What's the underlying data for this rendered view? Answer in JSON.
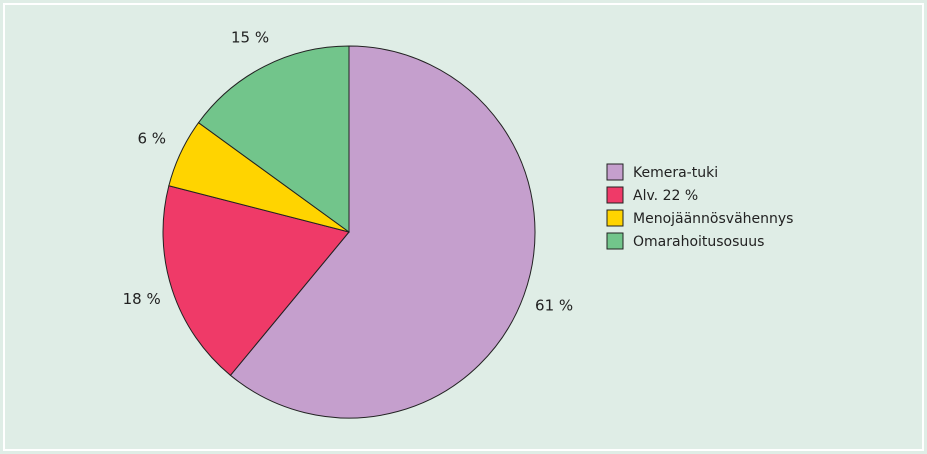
{
  "chart_data": {
    "type": "pie",
    "categories": [
      "Kemera-tuki",
      "Alv. 22 %",
      "Menojäännösvähennys",
      "Omarahoitusosuus"
    ],
    "values": [
      61,
      18,
      6,
      15
    ],
    "value_labels": [
      "61 %",
      "18 %",
      "6 %",
      "15 %"
    ],
    "colors": [
      "#c59fcd",
      "#ef3a68",
      "#ffd400",
      "#72c58b"
    ],
    "legend": "right"
  }
}
